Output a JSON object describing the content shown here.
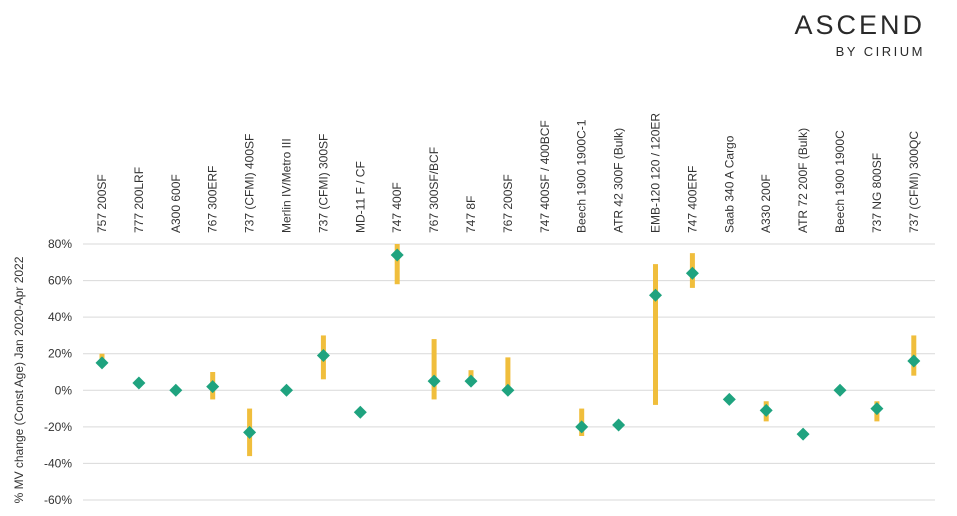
{
  "logo": {
    "main": "ASCEND",
    "sub": "BY CIRIUM"
  },
  "chart_data": {
    "type": "scatter",
    "title": "",
    "xlabel": "",
    "ylabel": "% MV change (Const Age) Jan 2020-Apr 2022",
    "ylim": [
      -60,
      80
    ],
    "yticks": [
      80,
      60,
      40,
      20,
      0,
      -20,
      -40,
      -60
    ],
    "ytick_labels": [
      "80%",
      "60%",
      "40%",
      "20%",
      "0%",
      "-20%",
      "-40%",
      "-60%"
    ],
    "grid": true,
    "categories": [
      "757 200SF",
      "777 200LRF",
      "A300 600F",
      "767 300ERF",
      "737 (CFMI) 400SF",
      "Merlin IV/Metro III",
      "737 (CFMI) 300SF",
      "MD-11 F / CF",
      "747 400F",
      "767 300SF/BCF",
      "747 8F",
      "767 200SF",
      "747 400SF / 400BCF",
      "Beech 1900 1900C-1",
      "ATR 42 300F (Bulk)",
      "EMB-120 120 / 120ER",
      "747 400ERF",
      "Saab 340 A Cargo",
      "A330 200F",
      "ATR 72 200F (Bulk)",
      "Beech 1900 1900C",
      "737 NG 800SF",
      "737 (CFMI) 300QC"
    ],
    "series": [
      {
        "type": "range",
        "values": [
          [
            14,
            20
          ],
          null,
          null,
          [
            -5,
            10
          ],
          [
            -36,
            -10
          ],
          null,
          [
            6,
            30
          ],
          null,
          [
            58,
            80
          ],
          [
            -5,
            28
          ],
          [
            3,
            11
          ],
          [
            0,
            18
          ],
          null,
          [
            -25,
            -10
          ],
          null,
          [
            -8,
            69
          ],
          [
            56,
            75
          ],
          null,
          [
            -17,
            -6
          ],
          null,
          null,
          [
            -17,
            -6
          ],
          [
            8,
            30
          ]
        ],
        "color": "#F0BE3C"
      },
      {
        "type": "point",
        "values": [
          15,
          4,
          0,
          2,
          -23,
          0,
          19,
          -12,
          74,
          5,
          5,
          0,
          null,
          -20,
          -19,
          52,
          64,
          -5,
          -11,
          -24,
          0,
          -10,
          16
        ],
        "color": "#1FA37F"
      }
    ]
  }
}
